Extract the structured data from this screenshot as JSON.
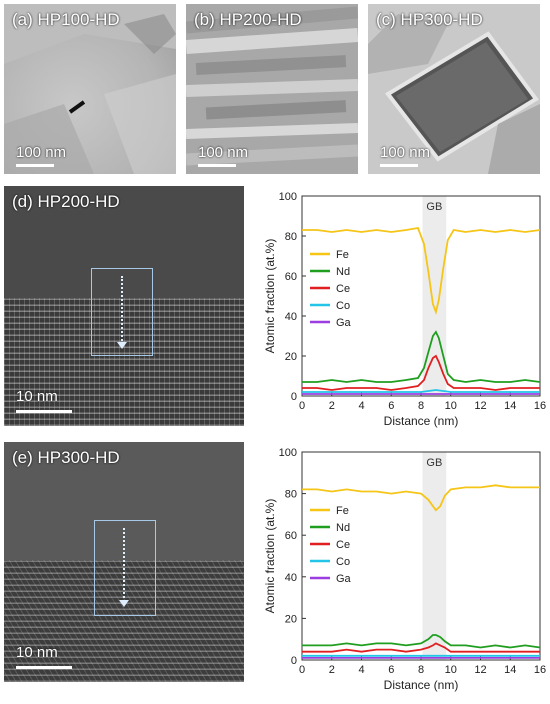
{
  "panels": {
    "a": {
      "label": "(a) HP100-HD",
      "scale": "100 nm"
    },
    "b": {
      "label": "(b) HP200-HD",
      "scale": "100 nm"
    },
    "c": {
      "label": "(c) HP300-HD",
      "scale": "100 nm"
    },
    "d": {
      "label": "(d) HP200-HD",
      "scale": "10 nm"
    },
    "e": {
      "label": "(e) HP300-HD",
      "scale": "10 nm"
    }
  },
  "colors": {
    "Fe": "#f5c518",
    "Nd": "#1f9e1f",
    "Ce": "#e02020",
    "Co": "#22c4e8",
    "Ga": "#9a3ee0"
  },
  "chart_data": [
    {
      "type": "line",
      "panel": "d",
      "ylabel": "Atomic fraction (at.%)",
      "xlabel": "Distance (nm)",
      "xlim": [
        0,
        16
      ],
      "ylim": [
        0,
        100
      ],
      "xticks": [
        0,
        2,
        4,
        6,
        8,
        10,
        12,
        14,
        16
      ],
      "yticks": [
        0,
        20,
        40,
        60,
        80,
        100
      ],
      "annotation": "GB",
      "gb_band": [
        8.1,
        9.7
      ],
      "series": [
        {
          "name": "Fe",
          "x": [
            0,
            1,
            2,
            3,
            4,
            5,
            6,
            7,
            7.8,
            8.2,
            8.5,
            8.8,
            9.0,
            9.2,
            9.5,
            9.8,
            10.2,
            11,
            12,
            13,
            14,
            15,
            16
          ],
          "values": [
            83,
            83,
            82,
            83,
            82,
            83,
            82,
            83,
            84,
            76,
            62,
            46,
            42,
            48,
            64,
            78,
            83,
            82,
            83,
            82,
            83,
            82,
            83
          ]
        },
        {
          "name": "Nd",
          "x": [
            0,
            1,
            2,
            3,
            4,
            5,
            6,
            7,
            7.8,
            8.2,
            8.5,
            8.8,
            9.0,
            9.2,
            9.5,
            9.8,
            10.2,
            11,
            12,
            13,
            14,
            15,
            16
          ],
          "values": [
            7,
            7,
            8,
            7,
            8,
            7,
            7,
            8,
            9,
            14,
            22,
            30,
            32,
            29,
            20,
            11,
            8,
            7,
            8,
            7,
            7,
            8,
            7
          ]
        },
        {
          "name": "Ce",
          "x": [
            0,
            1,
            2,
            3,
            4,
            5,
            6,
            7,
            7.8,
            8.2,
            8.5,
            8.8,
            9.0,
            9.2,
            9.5,
            9.8,
            10.2,
            11,
            12,
            13,
            14,
            15,
            16
          ],
          "values": [
            4,
            4,
            3,
            4,
            4,
            4,
            3,
            4,
            5,
            8,
            14,
            19,
            20,
            17,
            11,
            6,
            4,
            4,
            4,
            3,
            4,
            4,
            4
          ]
        },
        {
          "name": "Co",
          "x": [
            0,
            2,
            4,
            6,
            8,
            9,
            10,
            12,
            14,
            16
          ],
          "values": [
            2,
            2,
            2,
            2,
            2,
            3,
            2,
            2,
            2,
            2
          ]
        },
        {
          "name": "Ga",
          "x": [
            0,
            2,
            4,
            6,
            8,
            9,
            10,
            12,
            14,
            16
          ],
          "values": [
            1,
            1,
            1,
            1,
            1,
            1,
            1,
            1,
            1,
            1
          ]
        }
      ]
    },
    {
      "type": "line",
      "panel": "e",
      "ylabel": "Atomic fraction (at.%)",
      "xlabel": "Distance (nm)",
      "xlim": [
        0,
        16
      ],
      "ylim": [
        0,
        100
      ],
      "xticks": [
        0,
        2,
        4,
        6,
        8,
        10,
        12,
        14,
        16
      ],
      "yticks": [
        0,
        20,
        40,
        60,
        80,
        100
      ],
      "annotation": "GB",
      "gb_band": [
        8.1,
        9.7
      ],
      "series": [
        {
          "name": "Fe",
          "x": [
            0,
            1,
            2,
            3,
            4,
            5,
            6,
            7,
            8,
            8.5,
            8.8,
            9.0,
            9.3,
            9.6,
            10,
            11,
            12,
            13,
            14,
            15,
            16
          ],
          "values": [
            82,
            82,
            81,
            82,
            81,
            81,
            80,
            81,
            80,
            77,
            74,
            72,
            74,
            79,
            82,
            83,
            83,
            84,
            83,
            83,
            83
          ]
        },
        {
          "name": "Nd",
          "x": [
            0,
            1,
            2,
            3,
            4,
            5,
            6,
            7,
            8,
            8.5,
            8.8,
            9.0,
            9.3,
            9.6,
            10,
            11,
            12,
            13,
            14,
            15,
            16
          ],
          "values": [
            7,
            7,
            7,
            8,
            7,
            8,
            8,
            7,
            8,
            10,
            12,
            12,
            11,
            9,
            7,
            7,
            6,
            7,
            6,
            7,
            6
          ]
        },
        {
          "name": "Ce",
          "x": [
            0,
            1,
            2,
            3,
            4,
            5,
            6,
            7,
            8,
            8.5,
            8.8,
            9.0,
            9.3,
            9.6,
            10,
            11,
            12,
            13,
            14,
            15,
            16
          ],
          "values": [
            4,
            4,
            4,
            5,
            4,
            5,
            5,
            4,
            5,
            6,
            7,
            8,
            7,
            6,
            4,
            4,
            4,
            4,
            4,
            4,
            4
          ]
        },
        {
          "name": "Co",
          "x": [
            0,
            2,
            4,
            6,
            8,
            9,
            10,
            12,
            14,
            16
          ],
          "values": [
            2,
            2,
            2,
            2,
            2,
            2,
            2,
            2,
            2,
            2
          ]
        },
        {
          "name": "Ga",
          "x": [
            0,
            2,
            4,
            6,
            8,
            9,
            10,
            12,
            14,
            16
          ],
          "values": [
            1,
            1,
            1,
            1,
            1,
            1,
            1,
            1,
            1,
            1
          ]
        }
      ]
    }
  ]
}
